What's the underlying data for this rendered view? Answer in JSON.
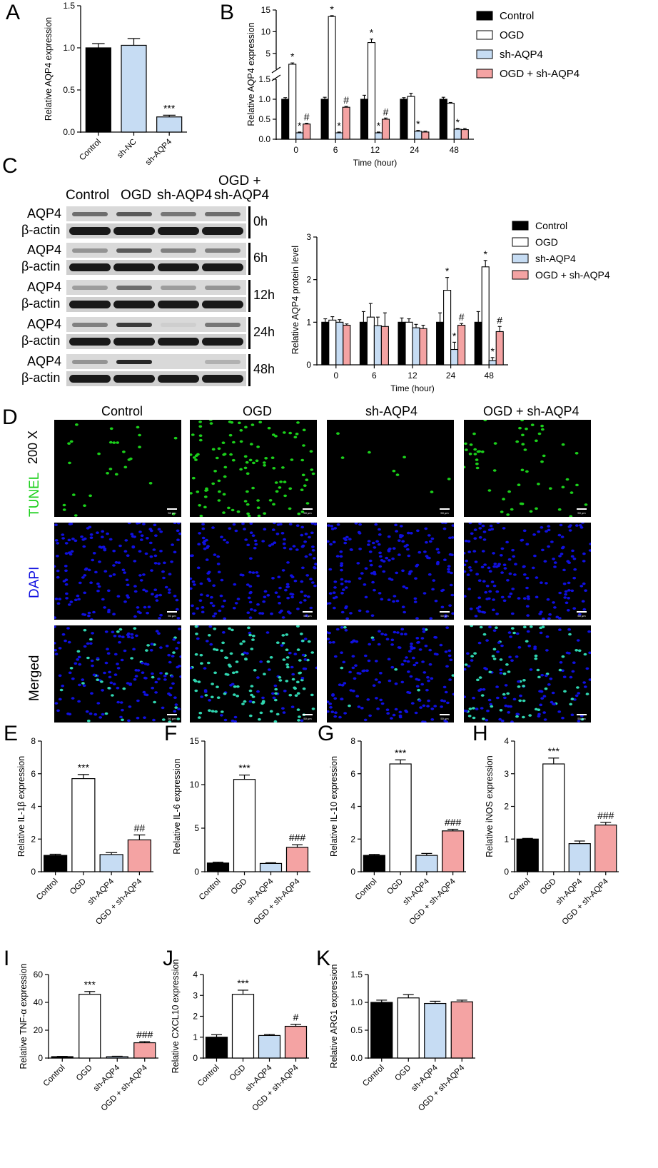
{
  "panel_letters": {
    "A": "A",
    "B": "B",
    "C": "C",
    "D": "D",
    "E": "E",
    "F": "F",
    "G": "G",
    "H": "H",
    "I": "I",
    "J": "J",
    "K": "K"
  },
  "colors": {
    "Control": "#000000",
    "OGD": "#ffffff",
    "sh-AQP4": "#c6dcf3",
    "OGD + sh-AQP4": "#f4a3a3",
    "sh-NC": "#c6dcf3",
    "tunel": "#1bd01b",
    "dapi": "#1010e0"
  },
  "legend": {
    "entries": [
      "Control",
      "OGD",
      "sh-AQP4",
      "OGD + sh-AQP4"
    ]
  },
  "blot": {
    "columns": [
      "Control",
      "OGD",
      "sh-AQP4"
    ],
    "column4_line1": "OGD +",
    "column4_line2": "sh-AQP4",
    "rows": [
      {
        "protein": "AQP4",
        "loading": "β-actin",
        "time": "0h"
      },
      {
        "protein": "AQP4",
        "loading": "β-actin",
        "time": "6h"
      },
      {
        "protein": "AQP4",
        "loading": "β-actin",
        "time": "12h"
      },
      {
        "protein": "AQP4",
        "loading": "β-actin",
        "time": "24h"
      },
      {
        "protein": "AQP4",
        "loading": "β-actin",
        "time": "48h"
      }
    ]
  },
  "microscopy": {
    "columns": [
      "Control",
      "OGD",
      "sh-AQP4",
      "OGD + sh-AQP4"
    ],
    "magnification": "200 X",
    "rows": [
      "TUNEL",
      "DAPI",
      "Merged"
    ],
    "scale_label": "50 μm"
  },
  "chart_data": [
    {
      "id": "A",
      "type": "bar",
      "categories": [
        "Control",
        "sh-NC",
        "sh-AQP4"
      ],
      "values": [
        1.0,
        1.03,
        0.18
      ],
      "errors": [
        0.05,
        0.08,
        0.02
      ],
      "ylabel": "Relative AQP4 expression",
      "ylim": [
        0,
        1.5
      ],
      "yticks": [
        "0.0",
        "0.5",
        "1.0",
        "1.5"
      ],
      "annotations": [
        "",
        "",
        "***"
      ]
    },
    {
      "id": "B",
      "type": "bar",
      "x": [
        "0",
        "6",
        "12",
        "24",
        "48"
      ],
      "xlabel": "Time (hour)",
      "ylabel": "Relative AQP4 expression",
      "broken_axis": true,
      "ylim_lower": [
        0,
        1.5
      ],
      "ylim_upper": [
        2,
        15
      ],
      "yticks_lower": [
        "0.0",
        "0.5",
        "1.0",
        "1.5"
      ],
      "yticks_upper": [
        "5",
        "10",
        "15"
      ],
      "series": [
        {
          "name": "Control",
          "values": [
            1.0,
            1.0,
            1.0,
            1.0,
            1.0
          ],
          "errors": [
            0.04,
            0.05,
            0.1,
            0.04,
            0.05
          ],
          "marks": [
            "",
            "",
            "",
            "",
            ""
          ]
        },
        {
          "name": "OGD",
          "values": [
            2.5,
            13.5,
            7.5,
            1.07,
            0.9
          ],
          "errors": [
            0.3,
            0.2,
            0.8,
            0.08,
            0.02
          ],
          "marks": [
            "*",
            "*",
            "*",
            "",
            ""
          ]
        },
        {
          "name": "sh-AQP4",
          "values": [
            0.16,
            0.16,
            0.16,
            0.2,
            0.25
          ],
          "errors": [
            0.02,
            0.02,
            0.02,
            0.02,
            0.02
          ],
          "marks": [
            "*",
            "*",
            "*",
            "*",
            "*"
          ]
        },
        {
          "name": "OGD + sh-AQP4",
          "values": [
            0.38,
            0.8,
            0.5,
            0.18,
            0.24
          ],
          "errors": [
            0.02,
            0.02,
            0.03,
            0.02,
            0.03
          ],
          "marks": [
            "#",
            "#",
            "#",
            "",
            ""
          ]
        }
      ]
    },
    {
      "id": "C",
      "type": "bar",
      "x": [
        "0",
        "6",
        "12",
        "24",
        "48"
      ],
      "xlabel": "Time (hour)",
      "ylabel": "Relative AQP4 protein level",
      "ylim": [
        0,
        3
      ],
      "yticks": [
        "0",
        "1",
        "2",
        "3"
      ],
      "series": [
        {
          "name": "Control",
          "values": [
            1.0,
            1.0,
            1.0,
            1.0,
            1.0
          ],
          "errors": [
            0.08,
            0.25,
            0.1,
            0.22,
            0.25
          ],
          "marks": [
            "",
            "",
            "",
            "",
            ""
          ]
        },
        {
          "name": "OGD",
          "values": [
            1.05,
            1.12,
            1.0,
            1.75,
            2.3
          ],
          "errors": [
            0.08,
            0.32,
            0.08,
            0.3,
            0.15
          ],
          "marks": [
            "",
            "",
            "",
            "*",
            "*"
          ]
        },
        {
          "name": "sh-AQP4",
          "values": [
            1.0,
            0.92,
            0.87,
            0.36,
            0.1
          ],
          "errors": [
            0.06,
            0.2,
            0.08,
            0.17,
            0.07
          ],
          "marks": [
            "",
            "",
            "",
            "*",
            "*"
          ]
        },
        {
          "name": "OGD + sh-AQP4",
          "values": [
            0.93,
            0.9,
            0.85,
            0.93,
            0.78
          ],
          "errors": [
            0.03,
            0.32,
            0.08,
            0.04,
            0.12
          ],
          "marks": [
            "",
            "",
            "",
            "#",
            "#"
          ]
        }
      ]
    },
    {
      "id": "E",
      "type": "bar",
      "categories": [
        "Control",
        "OGD",
        "sh-AQP4",
        "OGD + sh-AQP4"
      ],
      "values": [
        1.0,
        5.7,
        1.05,
        1.95
      ],
      "errors": [
        0.07,
        0.25,
        0.12,
        0.3
      ],
      "ylabel": "Relative IL-1β expression",
      "ylim": [
        0,
        8
      ],
      "yticks": [
        "0",
        "2",
        "4",
        "6",
        "8"
      ],
      "annotations": [
        "",
        "***",
        "",
        "##"
      ]
    },
    {
      "id": "F",
      "type": "bar",
      "categories": [
        "Control",
        "OGD",
        "sh-AQP4",
        "OGD + sh-AQP4"
      ],
      "values": [
        1.0,
        10.6,
        0.95,
        2.8
      ],
      "errors": [
        0.1,
        0.5,
        0.08,
        0.3
      ],
      "ylabel": "Relative IL-6 expression",
      "ylim": [
        0,
        15
      ],
      "yticks": [
        "0",
        "5",
        "10",
        "15"
      ],
      "annotations": [
        "",
        "***",
        "",
        "###"
      ]
    },
    {
      "id": "G",
      "type": "bar",
      "categories": [
        "Control",
        "OGD",
        "sh-AQP4",
        "OGD + sh-AQP4"
      ],
      "values": [
        1.0,
        6.6,
        1.0,
        2.5
      ],
      "errors": [
        0.06,
        0.25,
        0.12,
        0.1
      ],
      "ylabel": "Relative IL-10 expression",
      "ylim": [
        0,
        8
      ],
      "yticks": [
        "0",
        "2",
        "4",
        "6",
        "8"
      ],
      "annotations": [
        "",
        "***",
        "",
        "###"
      ]
    },
    {
      "id": "H",
      "type": "bar",
      "categories": [
        "Control",
        "OGD",
        "sh-AQP4",
        "OGD + sh-AQP4"
      ],
      "values": [
        1.0,
        3.3,
        0.86,
        1.43
      ],
      "errors": [
        0.02,
        0.18,
        0.08,
        0.08
      ],
      "ylabel": "Relative iNOS expression",
      "ylim": [
        0,
        4
      ],
      "yticks": [
        "0",
        "1",
        "2",
        "3",
        "4"
      ],
      "annotations": [
        "",
        "***",
        "",
        "###"
      ]
    },
    {
      "id": "I",
      "type": "bar",
      "categories": [
        "Control",
        "OGD",
        "sh-AQP4",
        "OGD + sh-AQP4"
      ],
      "values": [
        1.0,
        45.8,
        1.0,
        11.0
      ],
      "errors": [
        0.2,
        2.0,
        0.3,
        0.8
      ],
      "ylabel": "Relative TNF-α expression",
      "ylim": [
        0,
        60
      ],
      "yticks": [
        "0",
        "20",
        "40",
        "60"
      ],
      "annotations": [
        "",
        "***",
        "",
        "###"
      ]
    },
    {
      "id": "J",
      "type": "bar",
      "categories": [
        "Control",
        "OGD",
        "sh-AQP4",
        "OGD + sh-AQP4"
      ],
      "values": [
        1.0,
        3.05,
        1.08,
        1.52
      ],
      "errors": [
        0.12,
        0.2,
        0.05,
        0.1
      ],
      "ylabel": "Relative CXCL10 expression",
      "ylim": [
        0,
        4
      ],
      "yticks": [
        "0",
        "1",
        "2",
        "3",
        "4"
      ],
      "annotations": [
        "",
        "***",
        "",
        "#"
      ]
    },
    {
      "id": "K",
      "type": "bar",
      "categories": [
        "Control",
        "OGD",
        "sh-AQP4",
        "OGD + sh-AQP4"
      ],
      "values": [
        1.0,
        1.08,
        0.98,
        1.01
      ],
      "errors": [
        0.04,
        0.06,
        0.04,
        0.03
      ],
      "ylabel": "Relative ARG1 expression",
      "ylim": [
        0,
        1.5
      ],
      "yticks": [
        "0.0",
        "0.5",
        "1.0",
        "1.5"
      ],
      "annotations": [
        "",
        "",
        "",
        ""
      ]
    }
  ]
}
